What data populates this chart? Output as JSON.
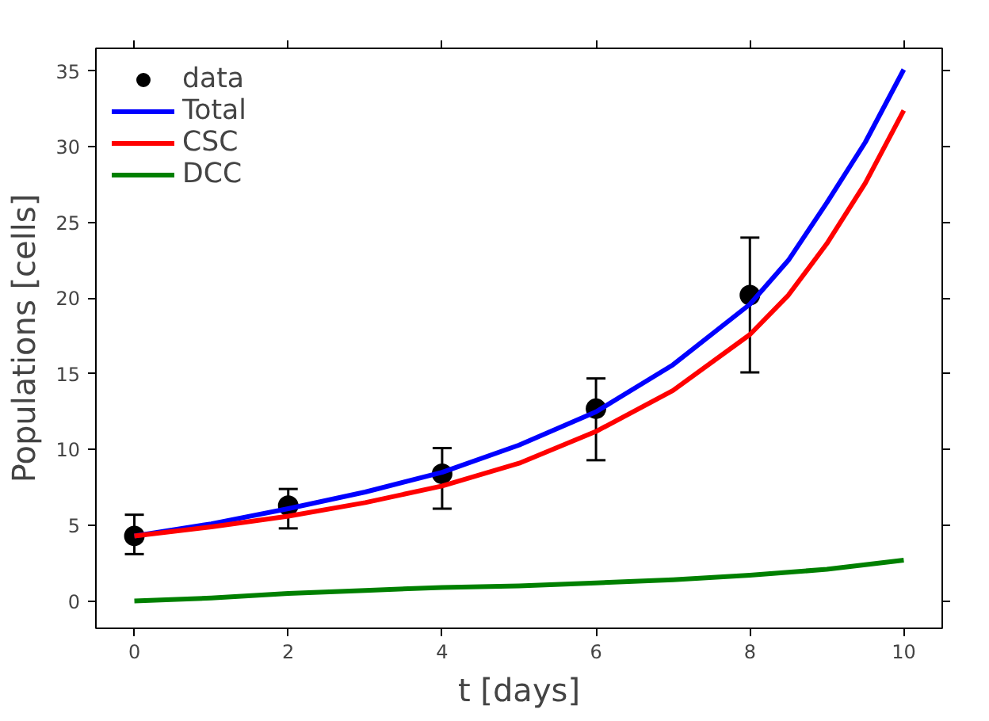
{
  "chart_data": {
    "type": "line",
    "xlabel": "t [days]",
    "ylabel": "Populations [cells]",
    "xlim": [
      -0.5,
      10.5
    ],
    "ylim": [
      -1.8,
      36.5
    ],
    "xticks": [
      0,
      2,
      4,
      6,
      8,
      10
    ],
    "yticks": [
      0,
      5,
      10,
      15,
      20,
      25,
      30,
      35
    ],
    "grid": false,
    "legend": "top left",
    "series": [
      {
        "name": "data",
        "type": "scatter",
        "marker": "circle",
        "color": "#000000",
        "x": [
          0,
          2,
          4,
          6,
          8
        ],
        "values": [
          4.3,
          6.3,
          8.4,
          12.7,
          20.2
        ],
        "errors": [
          [
            3.1,
            5.7
          ],
          [
            4.8,
            7.4
          ],
          [
            6.1,
            10.1
          ],
          [
            9.3,
            14.7
          ],
          [
            15.1,
            24.0
          ]
        ]
      },
      {
        "name": "Total",
        "color": "#0000ff",
        "x": [
          0,
          1,
          2,
          3,
          4,
          5,
          6,
          7,
          8,
          8.5,
          9,
          9.5,
          10
        ],
        "values": [
          4.3,
          5.1,
          6.1,
          7.2,
          8.5,
          10.3,
          12.5,
          15.6,
          19.6,
          22.5,
          26.3,
          30.3,
          35.1
        ]
      },
      {
        "name": "CSC",
        "color": "#ff0000",
        "x": [
          0,
          1,
          2,
          3,
          4,
          5,
          6,
          7,
          8,
          8.5,
          9,
          9.5,
          10
        ],
        "values": [
          4.3,
          4.9,
          5.6,
          6.5,
          7.6,
          9.1,
          11.2,
          13.9,
          17.6,
          20.2,
          23.6,
          27.6,
          32.4
        ]
      },
      {
        "name": "DCC",
        "color": "#008000",
        "x": [
          0,
          1,
          2,
          3,
          4,
          5,
          6,
          7,
          8,
          8.5,
          9,
          9.5,
          10
        ],
        "values": [
          0,
          0.2,
          0.5,
          0.7,
          0.9,
          1.0,
          1.2,
          1.4,
          1.7,
          1.9,
          2.1,
          2.4,
          2.7
        ]
      }
    ]
  }
}
